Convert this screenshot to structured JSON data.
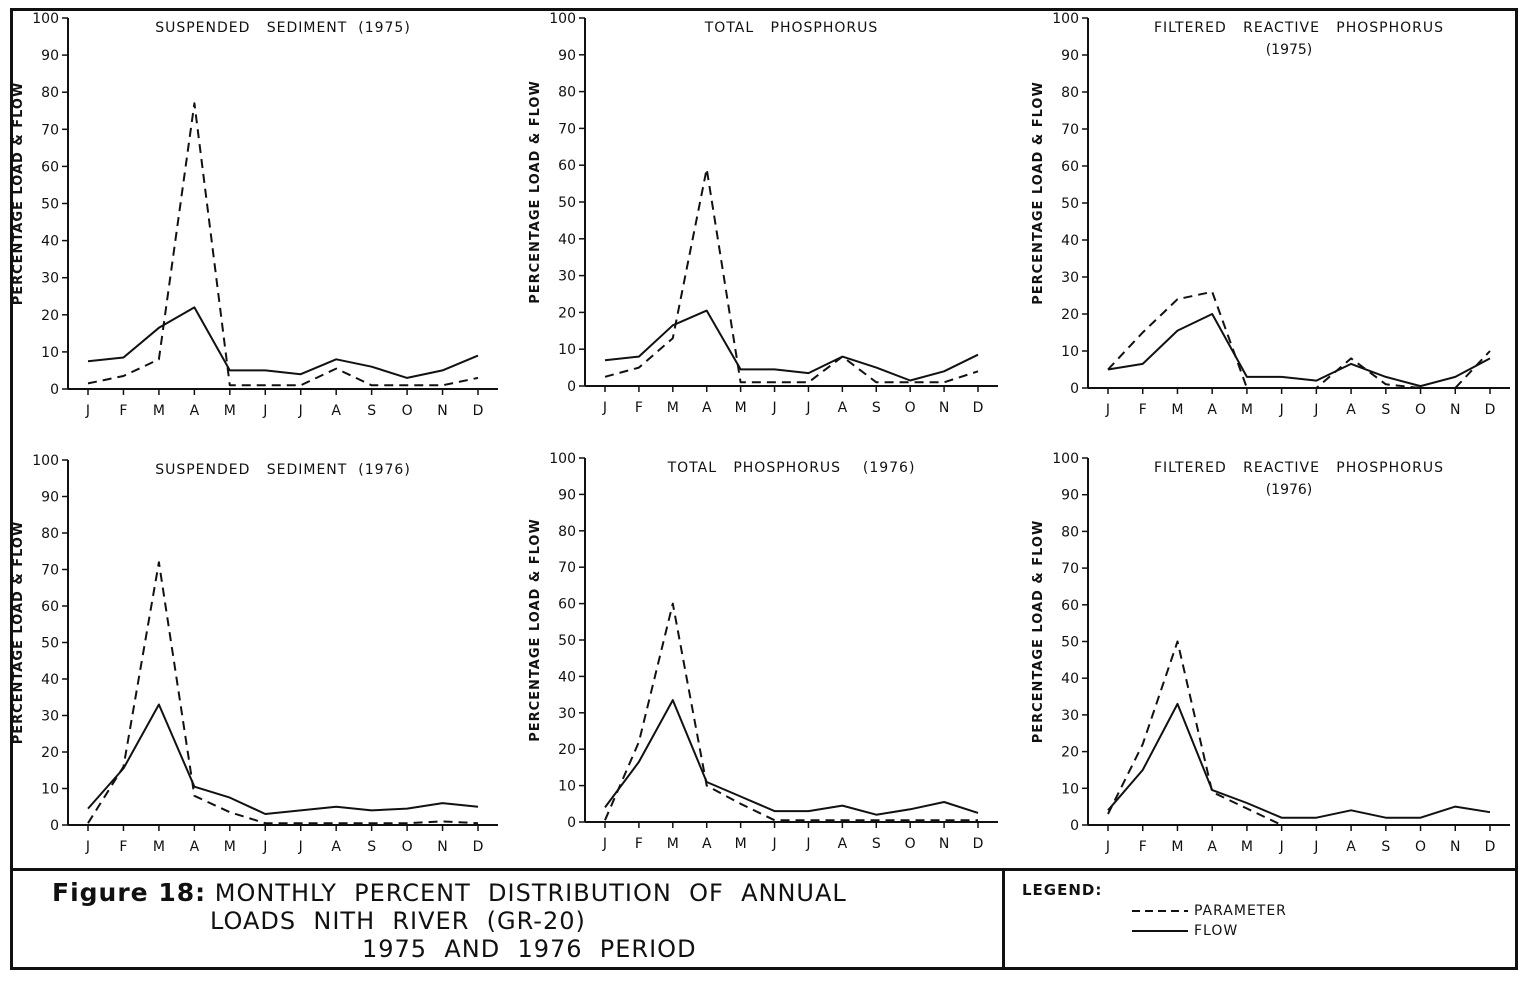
{
  "figure": {
    "number_label": "Figure 18:",
    "title_lines": [
      "MONTHLY  PERCENT  DISTRIBUTION  OF  ANNUAL",
      "LOADS  NITH  RIVER  (GR-20)",
      "1975  AND  1976  PERIOD"
    ]
  },
  "legend": {
    "title": "LEGEND:",
    "items": [
      {
        "label": "PARAMETER",
        "style": "dashed"
      },
      {
        "label": "FLOW",
        "style": "solid"
      }
    ]
  },
  "chart_data": [
    {
      "type": "line",
      "title": "SUSPENDED   SEDIMENT  (1975)",
      "ylabel": "PERCENTAGE  LOAD & FLOW",
      "categories": [
        "J",
        "F",
        "M",
        "A",
        "M",
        "J",
        "J",
        "A",
        "S",
        "O",
        "N",
        "D"
      ],
      "yticks": [
        0,
        10,
        20,
        30,
        40,
        50,
        60,
        70,
        80,
        90,
        100
      ],
      "ylim": [
        0,
        100
      ],
      "series": [
        {
          "name": "PARAMETER",
          "style": "dashed",
          "values": [
            1.5,
            3.5,
            8,
            77,
            1,
            1,
            1,
            5.5,
            1,
            1,
            1,
            3
          ]
        },
        {
          "name": "FLOW",
          "style": "solid",
          "values": [
            7.5,
            8.5,
            16.5,
            22,
            5,
            5,
            4,
            8,
            6,
            3,
            5,
            9
          ]
        }
      ]
    },
    {
      "type": "line",
      "title": "TOTAL   PHOSPHORUS",
      "ylabel": "PERCENTAGE  LOAD & FLOW",
      "categories": [
        "J",
        "F",
        "M",
        "A",
        "M",
        "J",
        "J",
        "A",
        "S",
        "O",
        "N",
        "D"
      ],
      "yticks": [
        0,
        10,
        20,
        30,
        40,
        50,
        60,
        70,
        80,
        90,
        100
      ],
      "ylim": [
        0,
        100
      ],
      "series": [
        {
          "name": "PARAMETER",
          "style": "dashed",
          "values": [
            2.5,
            5,
            13,
            59,
            1,
            1,
            1,
            8,
            1,
            1,
            1,
            4
          ]
        },
        {
          "name": "FLOW",
          "style": "solid",
          "values": [
            7,
            8,
            16.5,
            20.5,
            4.5,
            4.5,
            3.5,
            8,
            5,
            1.5,
            4,
            8.5
          ]
        }
      ]
    },
    {
      "type": "line",
      "title": "FILTERED   REACTIVE   PHOSPHORUS",
      "subtitle": "(1975)",
      "ylabel": "PERCENTAGE  LOAD & FLOW",
      "categories": [
        "J",
        "F",
        "M",
        "A",
        "M",
        "J",
        "J",
        "A",
        "S",
        "O",
        "N",
        "D"
      ],
      "yticks": [
        0,
        10,
        20,
        30,
        40,
        50,
        60,
        70,
        80,
        90,
        100
      ],
      "ylim": [
        0,
        100
      ],
      "series": [
        {
          "name": "PARAMETER",
          "style": "dashed",
          "values": [
            5,
            15,
            24,
            26,
            0,
            0,
            0,
            8,
            1,
            0,
            0,
            10
          ]
        },
        {
          "name": "FLOW",
          "style": "solid",
          "values": [
            5,
            6.5,
            15.5,
            20,
            3,
            3,
            2,
            6.5,
            3,
            0.5,
            3,
            8
          ]
        }
      ]
    },
    {
      "type": "line",
      "title": "SUSPENDED   SEDIMENT  (1976)",
      "ylabel": "PERCENTAGE  LOAD & FLOW",
      "categories": [
        "J",
        "F",
        "M",
        "A",
        "M",
        "J",
        "J",
        "A",
        "S",
        "O",
        "N",
        "D"
      ],
      "yticks": [
        0,
        10,
        20,
        30,
        40,
        50,
        60,
        70,
        80,
        90,
        100
      ],
      "ylim": [
        0,
        100
      ],
      "series": [
        {
          "name": "PARAMETER",
          "style": "dashed",
          "values": [
            0.5,
            16,
            72,
            8,
            3.5,
            0.5,
            0.5,
            0.5,
            0.5,
            0.5,
            1,
            0.5
          ]
        },
        {
          "name": "FLOW",
          "style": "solid",
          "values": [
            4.5,
            15.5,
            33,
            10.5,
            7.5,
            3,
            4,
            5,
            4,
            4.5,
            6,
            5
          ]
        }
      ]
    },
    {
      "type": "line",
      "title": "TOTAL   PHOSPHORUS    (1976)",
      "ylabel": "PERCENTAGE  LOAD & FLOW",
      "categories": [
        "J",
        "F",
        "M",
        "A",
        "M",
        "J",
        "J",
        "A",
        "S",
        "O",
        "N",
        "D"
      ],
      "yticks": [
        0,
        10,
        20,
        30,
        40,
        50,
        60,
        70,
        80,
        90,
        100
      ],
      "ylim": [
        0,
        100
      ],
      "series": [
        {
          "name": "PARAMETER",
          "style": "dashed",
          "values": [
            0.5,
            22,
            60,
            10,
            5,
            0.5,
            0.5,
            0.5,
            0.5,
            0.5,
            0.5,
            0.5
          ]
        },
        {
          "name": "FLOW",
          "style": "solid",
          "values": [
            4,
            16.5,
            33.5,
            11,
            7,
            3,
            3,
            4.5,
            2,
            3.5,
            5.5,
            2.5
          ]
        }
      ]
    },
    {
      "type": "line",
      "title": "FILTERED   REACTIVE   PHOSPHORUS",
      "subtitle": "(1976)",
      "ylabel": "PERCENTAGE  LOAD & FLOW",
      "categories": [
        "J",
        "F",
        "M",
        "A",
        "M",
        "J",
        "J",
        "A",
        "S",
        "O",
        "N",
        "D"
      ],
      "yticks": [
        0,
        10,
        20,
        30,
        40,
        50,
        60,
        70,
        80,
        90,
        100
      ],
      "ylim": [
        0,
        100
      ],
      "series": [
        {
          "name": "PARAMETER",
          "style": "dashed",
          "values": [
            3,
            22,
            50,
            9,
            4.5,
            0,
            0,
            0,
            0,
            0,
            0,
            0
          ]
        },
        {
          "name": "FLOW",
          "style": "solid",
          "values": [
            4,
            15,
            33,
            9.5,
            6,
            2,
            2,
            4,
            2,
            2,
            5,
            3.5
          ]
        }
      ]
    }
  ]
}
